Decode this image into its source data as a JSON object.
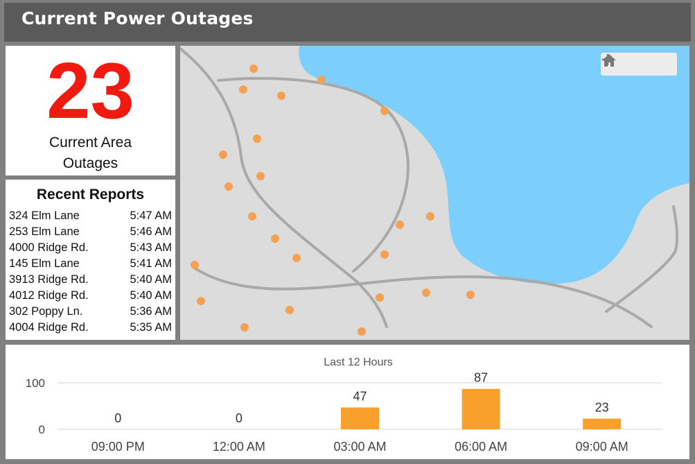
{
  "header": {
    "title": "Current Power Outages"
  },
  "summary": {
    "count": "23",
    "label_line1": "Current Area",
    "label_line2": "Outages"
  },
  "reports": {
    "title": "Recent Reports",
    "items": [
      {
        "address": "324 Elm Lane",
        "time": "5:47 AM"
      },
      {
        "address": "253 Elm Lane",
        "time": "5:46 AM"
      },
      {
        "address": "4000 Ridge Rd.",
        "time": "5:43 AM"
      },
      {
        "address": "145 Elm Lane",
        "time": "5:41 AM"
      },
      {
        "address": "3913 Ridge Rd.",
        "time": "5:40 AM"
      },
      {
        "address": "4012 Ridge Rd.",
        "time": "5:40 AM"
      },
      {
        "address": "302 Poppy Ln.",
        "time": "5:36 AM"
      },
      {
        "address": "4004 Ridge Rd.",
        "time": "5:35 AM"
      }
    ]
  },
  "map": {
    "controls": {
      "zoom_in_icon": "plus-icon",
      "zoom_out_icon": "minus-icon",
      "home_icon": "home-icon"
    },
    "colors": {
      "land": "#dcdcdc",
      "water": "#7ccefc",
      "road": "#a9a9a9",
      "marker": "#f5a052"
    }
  },
  "chart_data": {
    "type": "bar",
    "title": "Last 12 Hours",
    "categories": [
      "09:00 PM",
      "12:00 AM",
      "03:00 AM",
      "06:00 AM",
      "09:00 AM"
    ],
    "values": [
      0,
      0,
      47,
      87,
      23
    ],
    "ylim": [
      0,
      100
    ],
    "yticks": [
      0,
      100
    ],
    "grid": true,
    "bar_color": "#f7a02c"
  }
}
